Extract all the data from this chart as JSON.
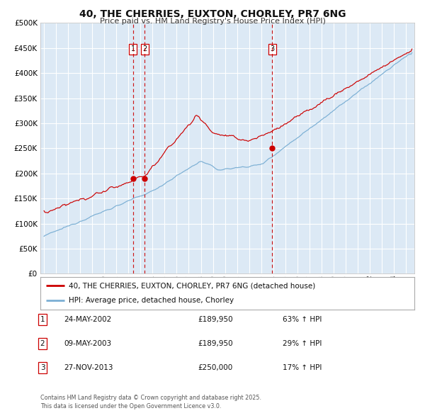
{
  "title": "40, THE CHERRIES, EUXTON, CHORLEY, PR7 6NG",
  "subtitle": "Price paid vs. HM Land Registry's House Price Index (HPI)",
  "background_color": "#ffffff",
  "plot_bg_color": "#dce9f5",
  "grid_color": "#ffffff",
  "red_line_color": "#cc0000",
  "blue_line_color": "#7bafd4",
  "marker_color": "#cc0000",
  "vline_color": "#cc0000",
  "ylim": [
    0,
    500000
  ],
  "yticks": [
    0,
    50000,
    100000,
    150000,
    200000,
    250000,
    300000,
    350000,
    400000,
    450000,
    500000
  ],
  "xlim_start": 1994.7,
  "xlim_end": 2025.7,
  "transactions": [
    {
      "date": 2002.39,
      "price": 189950,
      "label": "1"
    },
    {
      "date": 2003.36,
      "price": 189950,
      "label": "2"
    },
    {
      "date": 2013.9,
      "price": 250000,
      "label": "3"
    }
  ],
  "vlines": [
    2002.39,
    2003.36,
    2013.9
  ],
  "legend_entries": [
    "40, THE CHERRIES, EUXTON, CHORLEY, PR7 6NG (detached house)",
    "HPI: Average price, detached house, Chorley"
  ],
  "table_rows": [
    {
      "num": "1",
      "date": "24-MAY-2002",
      "price": "£189,950",
      "change": "63% ↑ HPI"
    },
    {
      "num": "2",
      "date": "09-MAY-2003",
      "price": "£189,950",
      "change": "29% ↑ HPI"
    },
    {
      "num": "3",
      "date": "27-NOV-2013",
      "price": "£250,000",
      "change": "17% ↑ HPI"
    }
  ],
  "footnote": "Contains HM Land Registry data © Crown copyright and database right 2025.\nThis data is licensed under the Open Government Licence v3.0."
}
